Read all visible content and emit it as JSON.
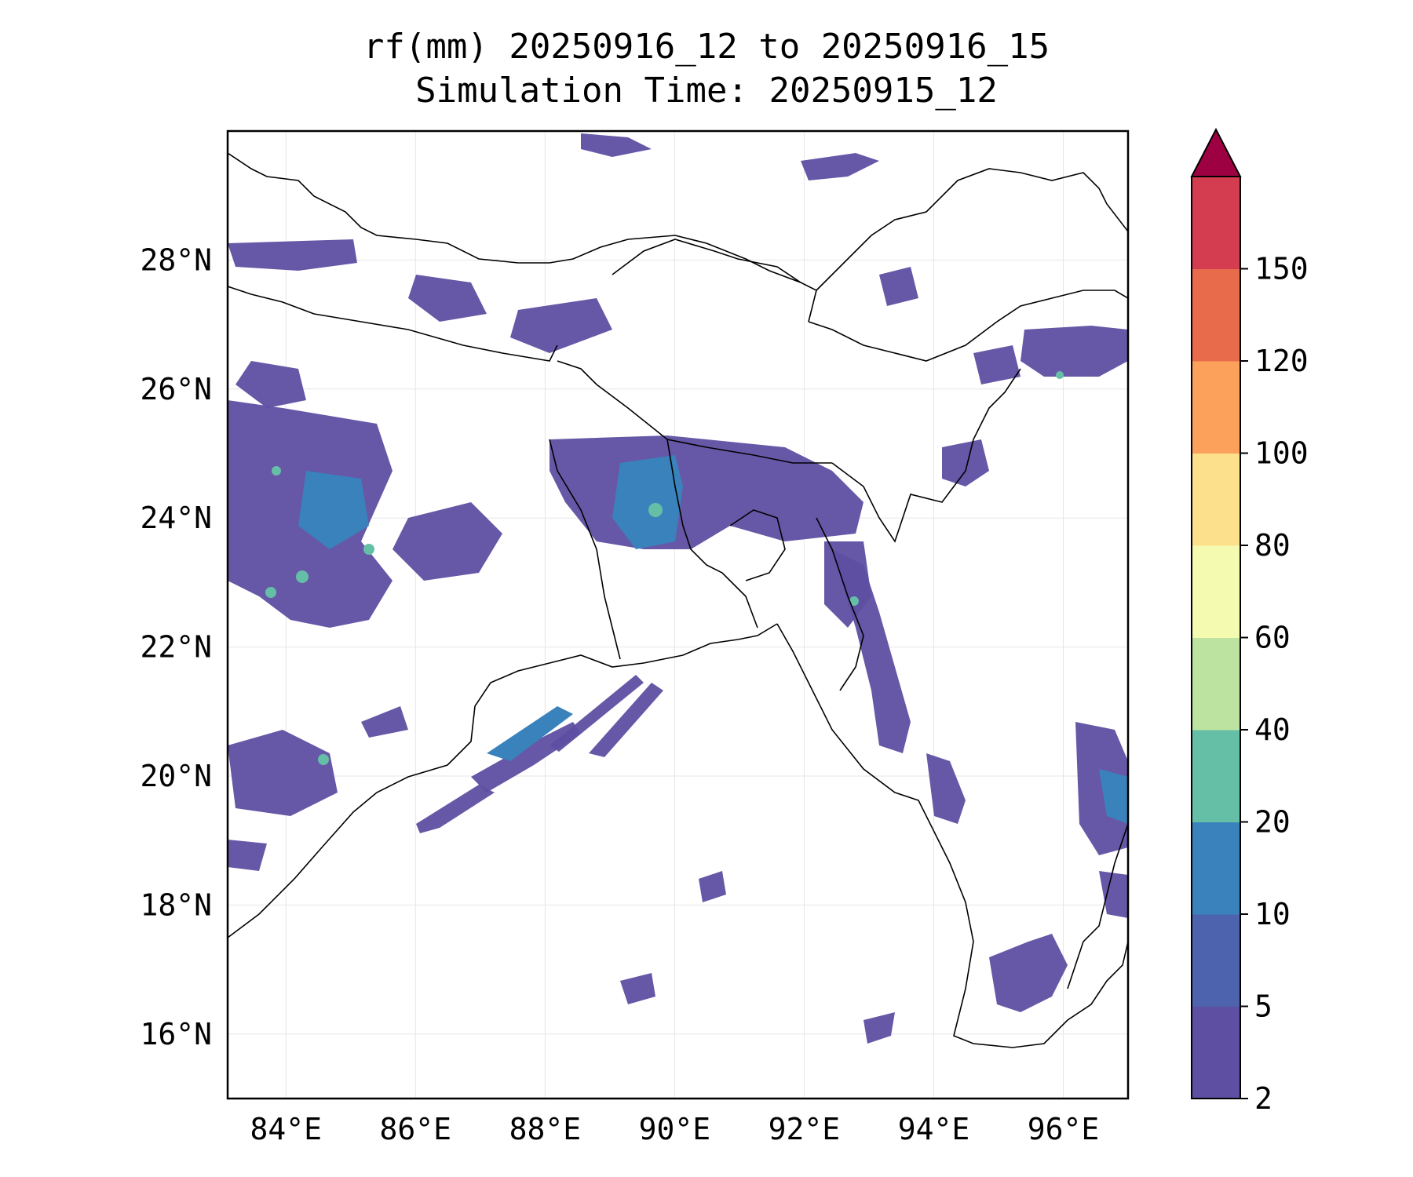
{
  "title_line1": "rf(mm) 20250916_12 to 20250916_15",
  "title_line2": "Simulation Time: 20250915_12",
  "map": {
    "lon_range": [
      83.1,
      97.0
    ],
    "lat_range": [
      15.0,
      30.0
    ],
    "lon_ticks": [
      "84°E",
      "86°E",
      "88°E",
      "90°E",
      "92°E",
      "94°E",
      "96°E"
    ],
    "lat_ticks": [
      "16°N",
      "18°N",
      "20°N",
      "22°N",
      "24°N",
      "26°N",
      "28°N"
    ],
    "gridlines": true,
    "land_color": "#ffffff",
    "coastline_color": "#000000"
  },
  "colorbar": {
    "levels": [
      "2",
      "5",
      "10",
      "20",
      "40",
      "60",
      "80",
      "100",
      "120",
      "150"
    ],
    "colors": [
      "#5e4fa2",
      "#4e63ae",
      "#3a82bb",
      "#65bfa7",
      "#bde3a0",
      "#f4faaf",
      "#fde08b",
      "#fba15c",
      "#e86b4b",
      "#d43d4f"
    ],
    "extend_color": "#9e0142",
    "extend": "max"
  }
}
